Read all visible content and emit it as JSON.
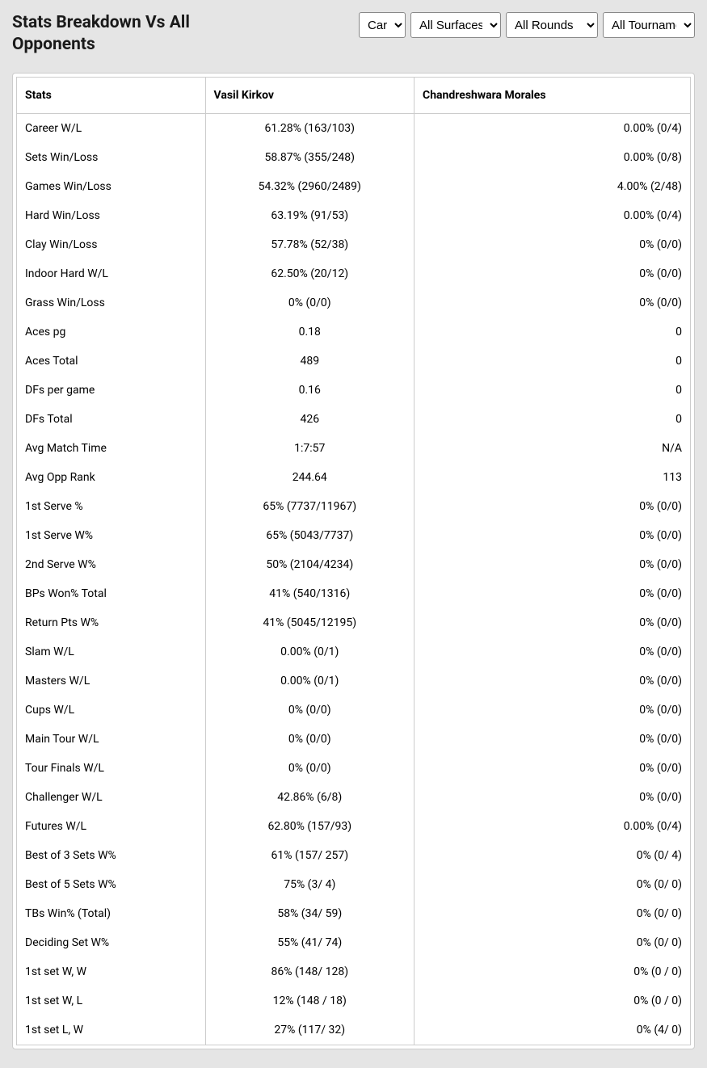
{
  "title": "Stats Breakdown Vs All Opponents",
  "filters": {
    "period": {
      "selected": "Career",
      "options": [
        "Career"
      ]
    },
    "surface": {
      "selected": "All Surfaces",
      "options": [
        "All Surfaces"
      ]
    },
    "rounds": {
      "selected": "All Rounds",
      "options": [
        "All Rounds"
      ]
    },
    "tournaments": {
      "selected": "All Tournaments",
      "options": [
        "All Tournaments"
      ]
    }
  },
  "columns": [
    "Stats",
    "Vasil Kirkov",
    "Chandreshwara Morales"
  ],
  "rows": [
    {
      "stat": "Career W/L",
      "p1": "61.28% (163/103)",
      "p2": "0.00% (0/4)"
    },
    {
      "stat": "Sets Win/Loss",
      "p1": "58.87% (355/248)",
      "p2": "0.00% (0/8)"
    },
    {
      "stat": "Games Win/Loss",
      "p1": "54.32% (2960/2489)",
      "p2": "4.00% (2/48)"
    },
    {
      "stat": "Hard Win/Loss",
      "p1": "63.19% (91/53)",
      "p2": "0.00% (0/4)"
    },
    {
      "stat": "Clay Win/Loss",
      "p1": "57.78% (52/38)",
      "p2": "0% (0/0)"
    },
    {
      "stat": "Indoor Hard W/L",
      "p1": "62.50% (20/12)",
      "p2": "0% (0/0)"
    },
    {
      "stat": "Grass Win/Loss",
      "p1": "0% (0/0)",
      "p2": "0% (0/0)"
    },
    {
      "stat": "Aces pg",
      "p1": "0.18",
      "p2": "0"
    },
    {
      "stat": "Aces Total",
      "p1": "489",
      "p2": "0"
    },
    {
      "stat": "DFs per game",
      "p1": "0.16",
      "p2": "0"
    },
    {
      "stat": "DFs Total",
      "p1": "426",
      "p2": "0"
    },
    {
      "stat": "Avg Match Time",
      "p1": "1:7:57",
      "p2": "N/A"
    },
    {
      "stat": "Avg Opp Rank",
      "p1": "244.64",
      "p2": "113"
    },
    {
      "stat": "1st Serve %",
      "p1": "65% (7737/11967)",
      "p2": "0% (0/0)"
    },
    {
      "stat": "1st Serve W%",
      "p1": "65% (5043/7737)",
      "p2": "0% (0/0)"
    },
    {
      "stat": "2nd Serve W%",
      "p1": "50% (2104/4234)",
      "p2": "0% (0/0)"
    },
    {
      "stat": "BPs Won% Total",
      "p1": "41% (540/1316)",
      "p2": "0% (0/0)"
    },
    {
      "stat": "Return Pts W%",
      "p1": "41% (5045/12195)",
      "p2": "0% (0/0)"
    },
    {
      "stat": "Slam W/L",
      "p1": "0.00% (0/1)",
      "p2": "0% (0/0)"
    },
    {
      "stat": "Masters W/L",
      "p1": "0.00% (0/1)",
      "p2": "0% (0/0)"
    },
    {
      "stat": "Cups W/L",
      "p1": "0% (0/0)",
      "p2": "0% (0/0)"
    },
    {
      "stat": "Main Tour W/L",
      "p1": "0% (0/0)",
      "p2": "0% (0/0)"
    },
    {
      "stat": "Tour Finals W/L",
      "p1": "0% (0/0)",
      "p2": "0% (0/0)"
    },
    {
      "stat": "Challenger W/L",
      "p1": "42.86% (6/8)",
      "p2": "0% (0/0)"
    },
    {
      "stat": "Futures W/L",
      "p1": "62.80% (157/93)",
      "p2": "0.00% (0/4)"
    },
    {
      "stat": "Best of 3 Sets W%",
      "p1": "61% (157/ 257)",
      "p2": "0% (0/ 4)"
    },
    {
      "stat": "Best of 5 Sets W%",
      "p1": "75% (3/ 4)",
      "p2": "0% (0/ 0)"
    },
    {
      "stat": "TBs Win% (Total)",
      "p1": "58% (34/ 59)",
      "p2": "0% (0/ 0)"
    },
    {
      "stat": "Deciding Set W%",
      "p1": "55% (41/ 74)",
      "p2": "0% (0/ 0)"
    },
    {
      "stat": "1st set W, W",
      "p1": "86% (148/ 128)",
      "p2": "0% (0 / 0)"
    },
    {
      "stat": "1st set W, L",
      "p1": "12% (148 / 18)",
      "p2": "0% (0 / 0)"
    },
    {
      "stat": "1st set L, W",
      "p1": "27% (117/ 32)",
      "p2": "0% (4/ 0)"
    }
  ],
  "styling": {
    "background_color": "#e5e5e5",
    "table_background": "#ffffff",
    "border_color": "#cccccc",
    "text_color": "#1a1a1a",
    "header_fontsize": 21,
    "cell_fontsize": 14,
    "select_widths": {
      "period": 58,
      "surface": 112,
      "rounds": 114,
      "tournaments": 114
    }
  }
}
